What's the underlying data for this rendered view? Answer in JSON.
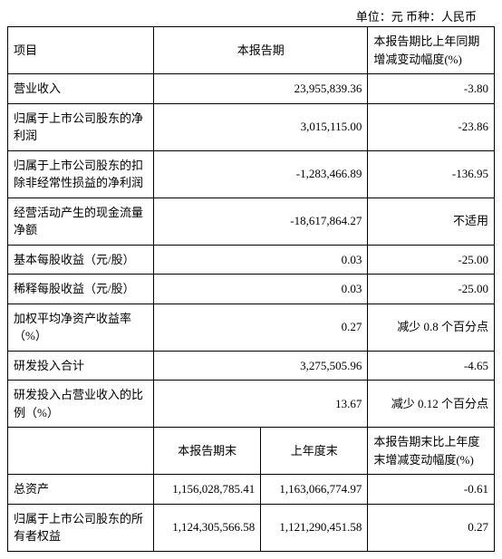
{
  "unit_line": "单位：元  币种：人民币",
  "header": {
    "item": "项目",
    "current_period": "本报告期",
    "yoy_change": "本报告期比上年同期增减变动幅度(%)"
  },
  "rows_top": [
    {
      "label": "营业收入",
      "value": "23,955,839.36",
      "change": "-3.80"
    },
    {
      "label": "归属于上市公司股东的净利润",
      "value": "3,015,115.00",
      "change": "-23.86"
    },
    {
      "label": "归属于上市公司股东的扣除非经常性损益的净利润",
      "value": "-1,283,466.89",
      "change": "-136.95"
    },
    {
      "label": "经营活动产生的现金流量净额",
      "value": "-18,617,864.27",
      "change": "不适用"
    },
    {
      "label": "基本每股收益（元/股）",
      "value": "0.03",
      "change": "-25.00"
    },
    {
      "label": "稀释每股收益（元/股）",
      "value": "0.03",
      "change": "-25.00"
    },
    {
      "label": "加权平均净资产收益率（%）",
      "value": "0.27",
      "change": "减少 0.8 个百分点"
    },
    {
      "label": "研发投入合计",
      "value": "3,275,505.96",
      "change": "-4.65"
    },
    {
      "label": "研发投入占营业收入的比例（%）",
      "value": "13.67",
      "change": "减少 0.12 个百分点"
    }
  ],
  "header2": {
    "end_current": "本报告期末",
    "end_last": "上年度末",
    "change": "本报告期末比上年度末增减变动幅度(%)"
  },
  "rows_bottom": [
    {
      "label": "总资产",
      "v1": "1,156,028,785.41",
      "v2": "1,163,066,774.97",
      "change": "-0.61"
    },
    {
      "label": "归属于上市公司股东的所有者权益",
      "v1": "1,124,305,566.58",
      "v2": "1,121,290,451.58",
      "change": "0.27"
    }
  ],
  "colors": {
    "border": "#000000",
    "text": "#000000",
    "bg": "#ffffff"
  }
}
